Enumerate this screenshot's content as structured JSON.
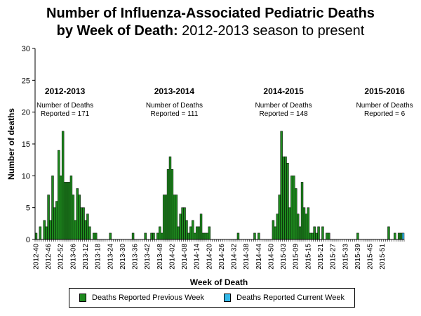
{
  "title": {
    "line1": "Number of Influenza-Associated Pediatric Deaths",
    "line2_bold": "by Week of Death:",
    "line2_rest": " 2012-2013 season to present"
  },
  "colors": {
    "previous": "#1e8a1e",
    "current": "#33b8e8",
    "axis": "#000000"
  },
  "chart_data": {
    "type": "bar",
    "stacked": true,
    "title": "Number of Influenza-Associated Pediatric Deaths by Week of Death: 2012-2013 season to present",
    "xlabel": "Week of Death",
    "ylabel": "Number of deaths",
    "ylim": [
      0,
      30
    ],
    "yticks": [
      0,
      5,
      10,
      15,
      20,
      25,
      30
    ],
    "grid": false,
    "legend_position": "bottom",
    "tick_labels": [
      "2012-40",
      "2012-46",
      "2012-52",
      "2013-06",
      "2013-12",
      "2013-18",
      "2013-24",
      "2013-30",
      "2013-36",
      "2013-42",
      "2013-48",
      "2014-02",
      "2014-08",
      "2014-14",
      "2014-20",
      "2014-26",
      "2014-32",
      "2014-38",
      "2014-44",
      "2014-50",
      "2015-03",
      "2015-09",
      "2015-15",
      "2015-21",
      "2015-27",
      "2015-33",
      "2015-39",
      "2015-45",
      "2015-51"
    ],
    "series": [
      {
        "name": "Deaths Reported Previous Week",
        "values": [
          1,
          0,
          2,
          0,
          3,
          2,
          7,
          3,
          10,
          5,
          6,
          14,
          10,
          17,
          9,
          9,
          9,
          10,
          7,
          3,
          8,
          7,
          5,
          5,
          3,
          4,
          2,
          0,
          1,
          1,
          0,
          0,
          0,
          0,
          0,
          0,
          1,
          0,
          0,
          0,
          0,
          0,
          0,
          0,
          0,
          0,
          0,
          1,
          0,
          0,
          0,
          0,
          0,
          1,
          0,
          0,
          1,
          1,
          0,
          1,
          2,
          1,
          7,
          7,
          11,
          13,
          11,
          7,
          7,
          2,
          4,
          5,
          5,
          3,
          1,
          2,
          3,
          1,
          2,
          2,
          4,
          1,
          1,
          1,
          2,
          0,
          0,
          0,
          0,
          0,
          0,
          0,
          0,
          0,
          0,
          0,
          0,
          0,
          1,
          0,
          0,
          0,
          0,
          0,
          0,
          0,
          1,
          0,
          1,
          0,
          0,
          0,
          0,
          0,
          0,
          3,
          2,
          4,
          7,
          17,
          13,
          13,
          12,
          5,
          10,
          10,
          8,
          4,
          2,
          9,
          5,
          4,
          5,
          1,
          1,
          2,
          1,
          2,
          0,
          2,
          0,
          1,
          1,
          0,
          0,
          0,
          0,
          0,
          0,
          0,
          0,
          0,
          0,
          0,
          0,
          0,
          1,
          0,
          0,
          0,
          0,
          0,
          0,
          0,
          0,
          0,
          0,
          0,
          0,
          0,
          0,
          2,
          0,
          0,
          1,
          0,
          1,
          1,
          0
        ]
      },
      {
        "name": "Deaths Reported Current Week",
        "values": [
          0,
          0,
          0,
          0,
          0,
          0,
          0,
          0,
          0,
          0,
          0,
          0,
          0,
          0,
          0,
          0,
          0,
          0,
          0,
          0,
          0,
          0,
          0,
          0,
          0,
          0,
          0,
          0,
          0,
          0,
          0,
          0,
          0,
          0,
          0,
          0,
          0,
          0,
          0,
          0,
          0,
          0,
          0,
          0,
          0,
          0,
          0,
          0,
          0,
          0,
          0,
          0,
          0,
          0,
          0,
          0,
          0,
          0,
          0,
          0,
          0,
          0,
          0,
          0,
          0,
          0,
          0,
          0,
          0,
          0,
          0,
          0,
          0,
          0,
          0,
          0,
          0,
          0,
          0,
          0,
          0,
          0,
          0,
          0,
          0,
          0,
          0,
          0,
          0,
          0,
          0,
          0,
          0,
          0,
          0,
          0,
          0,
          0,
          0,
          0,
          0,
          0,
          0,
          0,
          0,
          0,
          0,
          0,
          0,
          0,
          0,
          0,
          0,
          0,
          0,
          0,
          0,
          0,
          0,
          0,
          0,
          0,
          0,
          0,
          0,
          0,
          0,
          0,
          0,
          0,
          0,
          0,
          0,
          0,
          0,
          0,
          0,
          0,
          0,
          0,
          0,
          0,
          0,
          0,
          0,
          0,
          0,
          0,
          0,
          0,
          0,
          0,
          0,
          0,
          0,
          0,
          0,
          0,
          0,
          0,
          0,
          0,
          0,
          0,
          0,
          0,
          0,
          0,
          0,
          0,
          0,
          0,
          0,
          0,
          0,
          0,
          0,
          0,
          1
        ]
      }
    ],
    "annotations": [
      {
        "season": "2012-2013",
        "text1": "Number of Deaths",
        "text2": "Reported = 171",
        "anchor_week": 14
      },
      {
        "season": "2013-2014",
        "text1": "Number of Deaths",
        "text2": "Reported = 111",
        "anchor_week": 67
      },
      {
        "season": "2014-2015",
        "text1": "Number of Deaths",
        "text2": "Reported = 148",
        "anchor_week": 120
      },
      {
        "season": "2015-2016",
        "text1": "Number of Deaths",
        "text2": "Reported = 6",
        "anchor_week": 169
      }
    ]
  },
  "legend": {
    "previous_label": "Deaths Reported Previous Week",
    "current_label": "Deaths Reported Current Week"
  }
}
